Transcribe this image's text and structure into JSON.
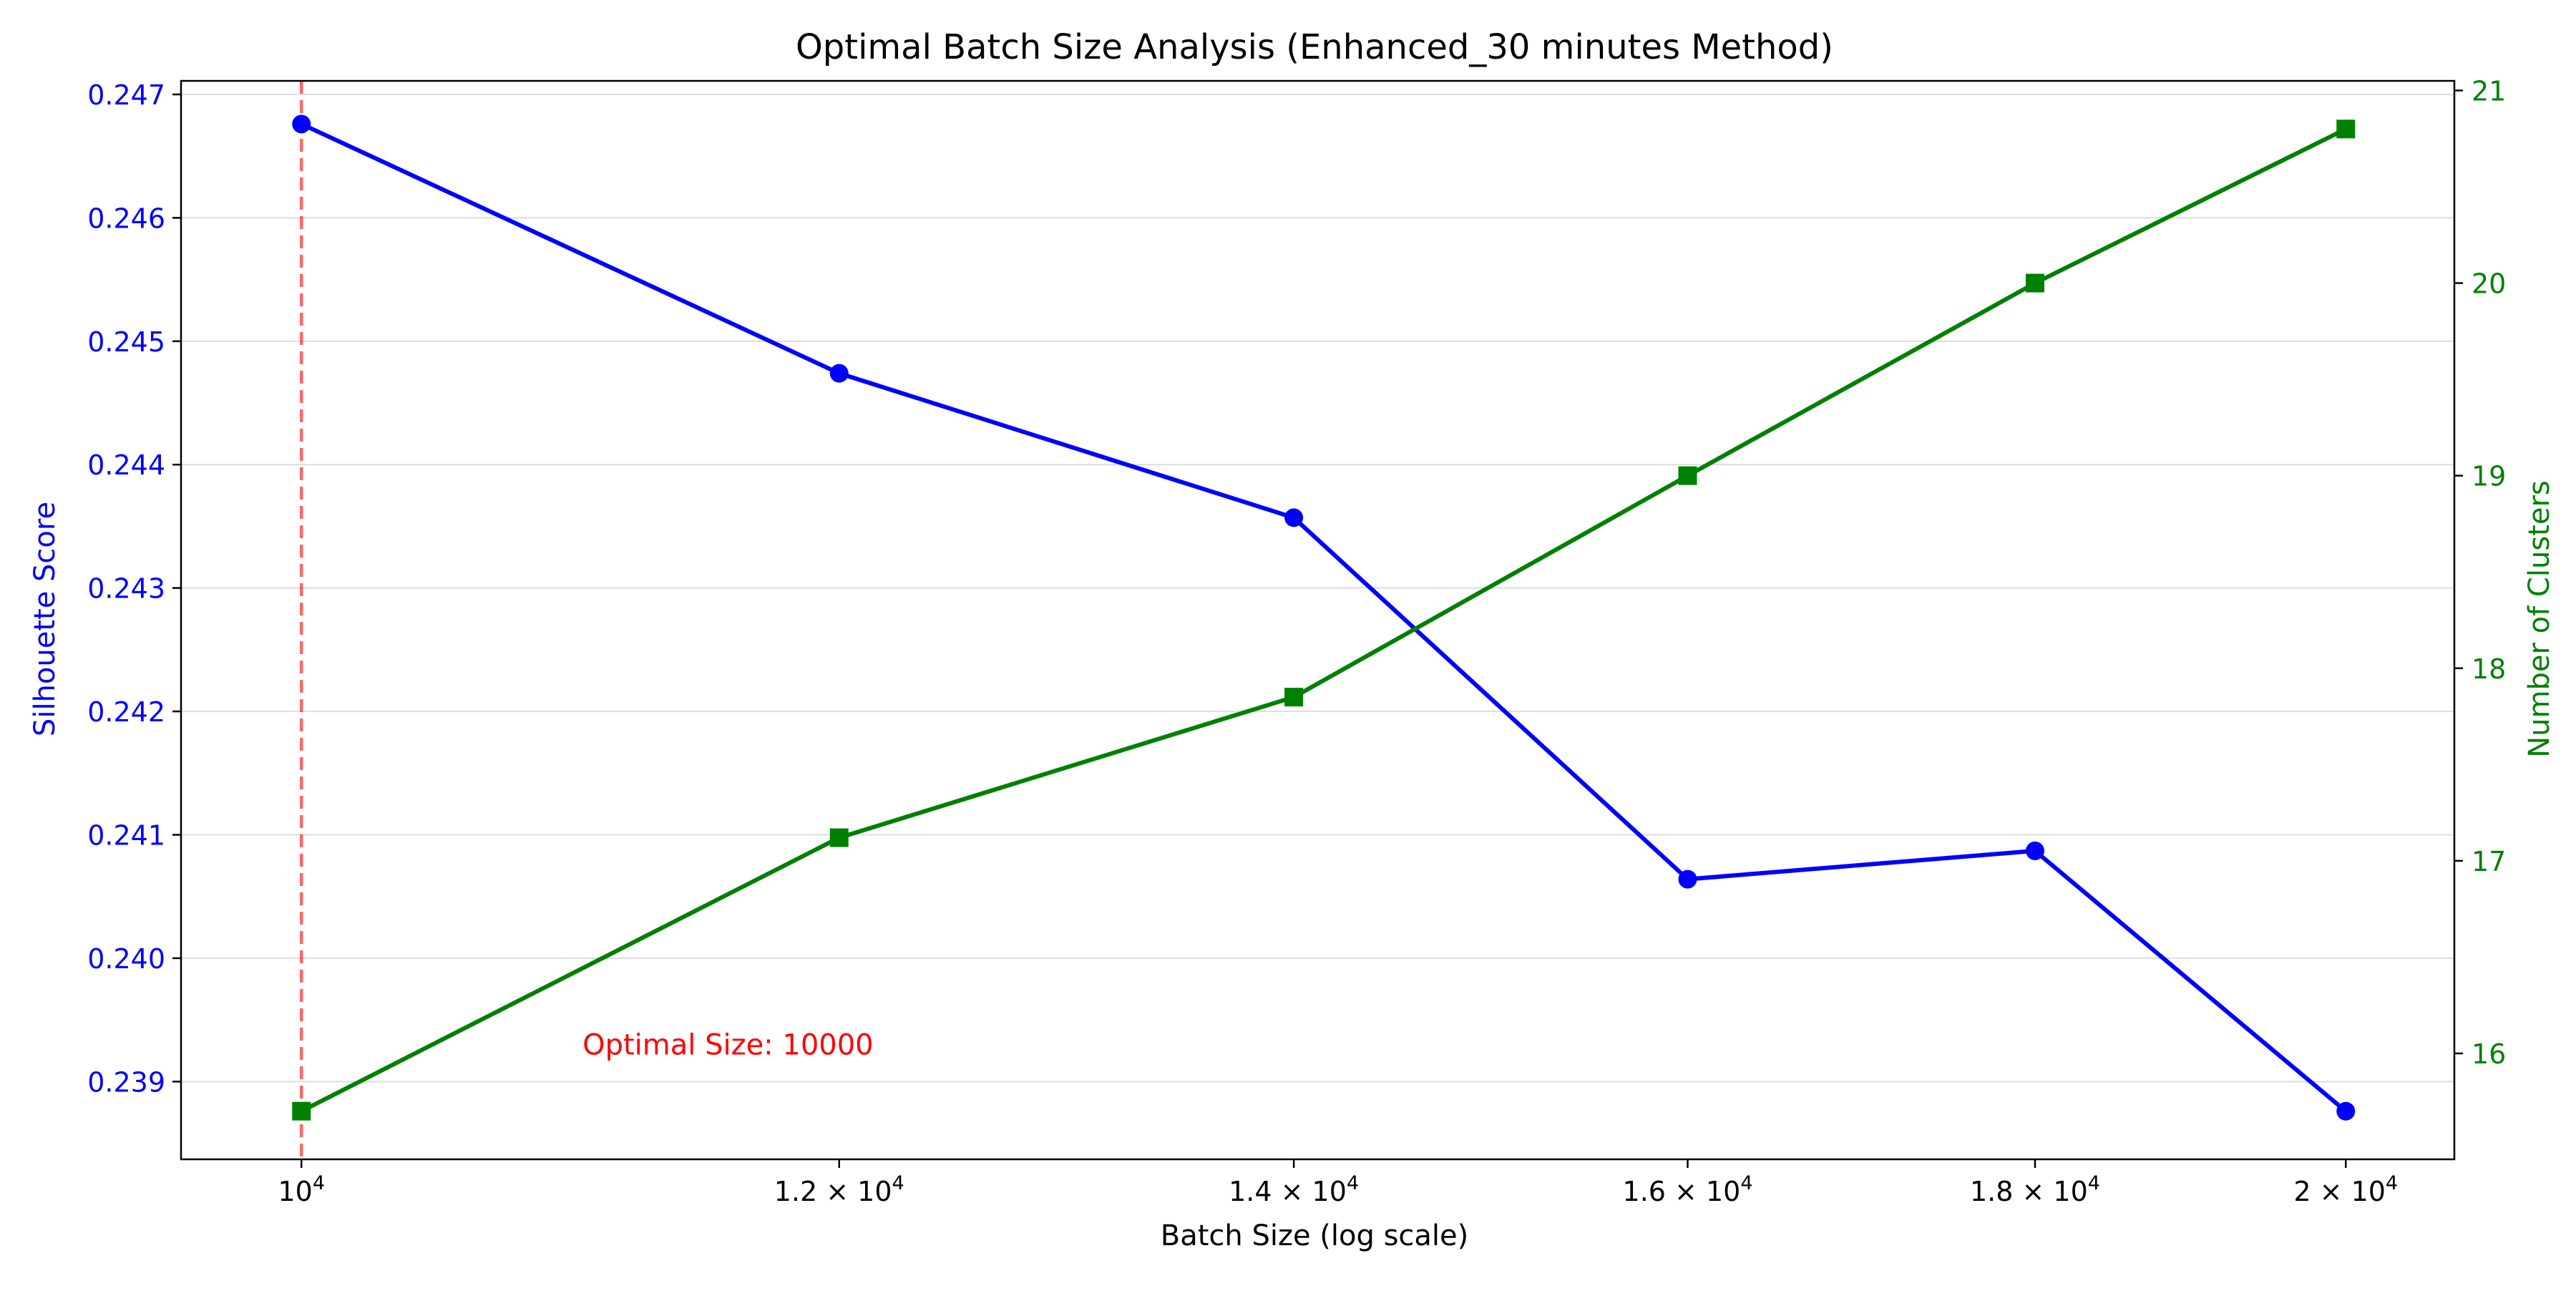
{
  "chart_data": {
    "type": "line",
    "title": "Optimal Batch Size Analysis (Enhanced_30 minutes Method)",
    "xlabel": "Batch Size (log scale)",
    "ylabel_left": "Silhouette Score",
    "ylabel_right": "Number of Clusters",
    "x_scale": "log",
    "x": [
      10000,
      12000,
      14000,
      16000,
      18000,
      20000
    ],
    "x_ticks": [
      {
        "value": 10000,
        "base": "10",
        "exp": "4",
        "mantissa": ""
      },
      {
        "value": 12000,
        "base": "10",
        "exp": "4",
        "mantissa": "1.2 × "
      },
      {
        "value": 14000,
        "base": "10",
        "exp": "4",
        "mantissa": "1.4 × "
      },
      {
        "value": 16000,
        "base": "10",
        "exp": "4",
        "mantissa": "1.6 × "
      },
      {
        "value": 18000,
        "base": "10",
        "exp": "4",
        "mantissa": "1.8 × "
      },
      {
        "value": 20000,
        "base": "10",
        "exp": "4",
        "mantissa": "2 × "
      }
    ],
    "xlim": [
      9600,
      20750
    ],
    "ylim_left": [
      0.23837,
      0.24711
    ],
    "ylim_right": [
      15.45,
      21.05
    ],
    "y_ticks_left": [
      "0.239",
      "0.240",
      "0.241",
      "0.242",
      "0.243",
      "0.244",
      "0.245",
      "0.246",
      "0.247"
    ],
    "y_ticks_right": [
      "16",
      "17",
      "18",
      "19",
      "20",
      "21"
    ],
    "grid": "horizontal",
    "series": [
      {
        "axis": "left",
        "marker": "circle",
        "color": "#0000ff",
        "values": [
          0.24676,
          0.24474,
          0.24357,
          0.24064,
          0.24087,
          0.23876
        ]
      },
      {
        "axis": "right",
        "marker": "square",
        "color": "#008000",
        "values": [
          15.7,
          17.12,
          17.85,
          19.0,
          20.0,
          20.8
        ]
      }
    ],
    "reference_line": {
      "x": 10000,
      "color": "#ff0000",
      "style": "dashed"
    },
    "annotation": {
      "text": "Optimal Size: 10000",
      "x": 11000,
      "y": 0.2393,
      "axis": "left",
      "color": "#ff0000"
    },
    "colors": {
      "left_axis": "#0000ff",
      "right_axis": "#008000",
      "annotation": "#ff0000"
    }
  }
}
